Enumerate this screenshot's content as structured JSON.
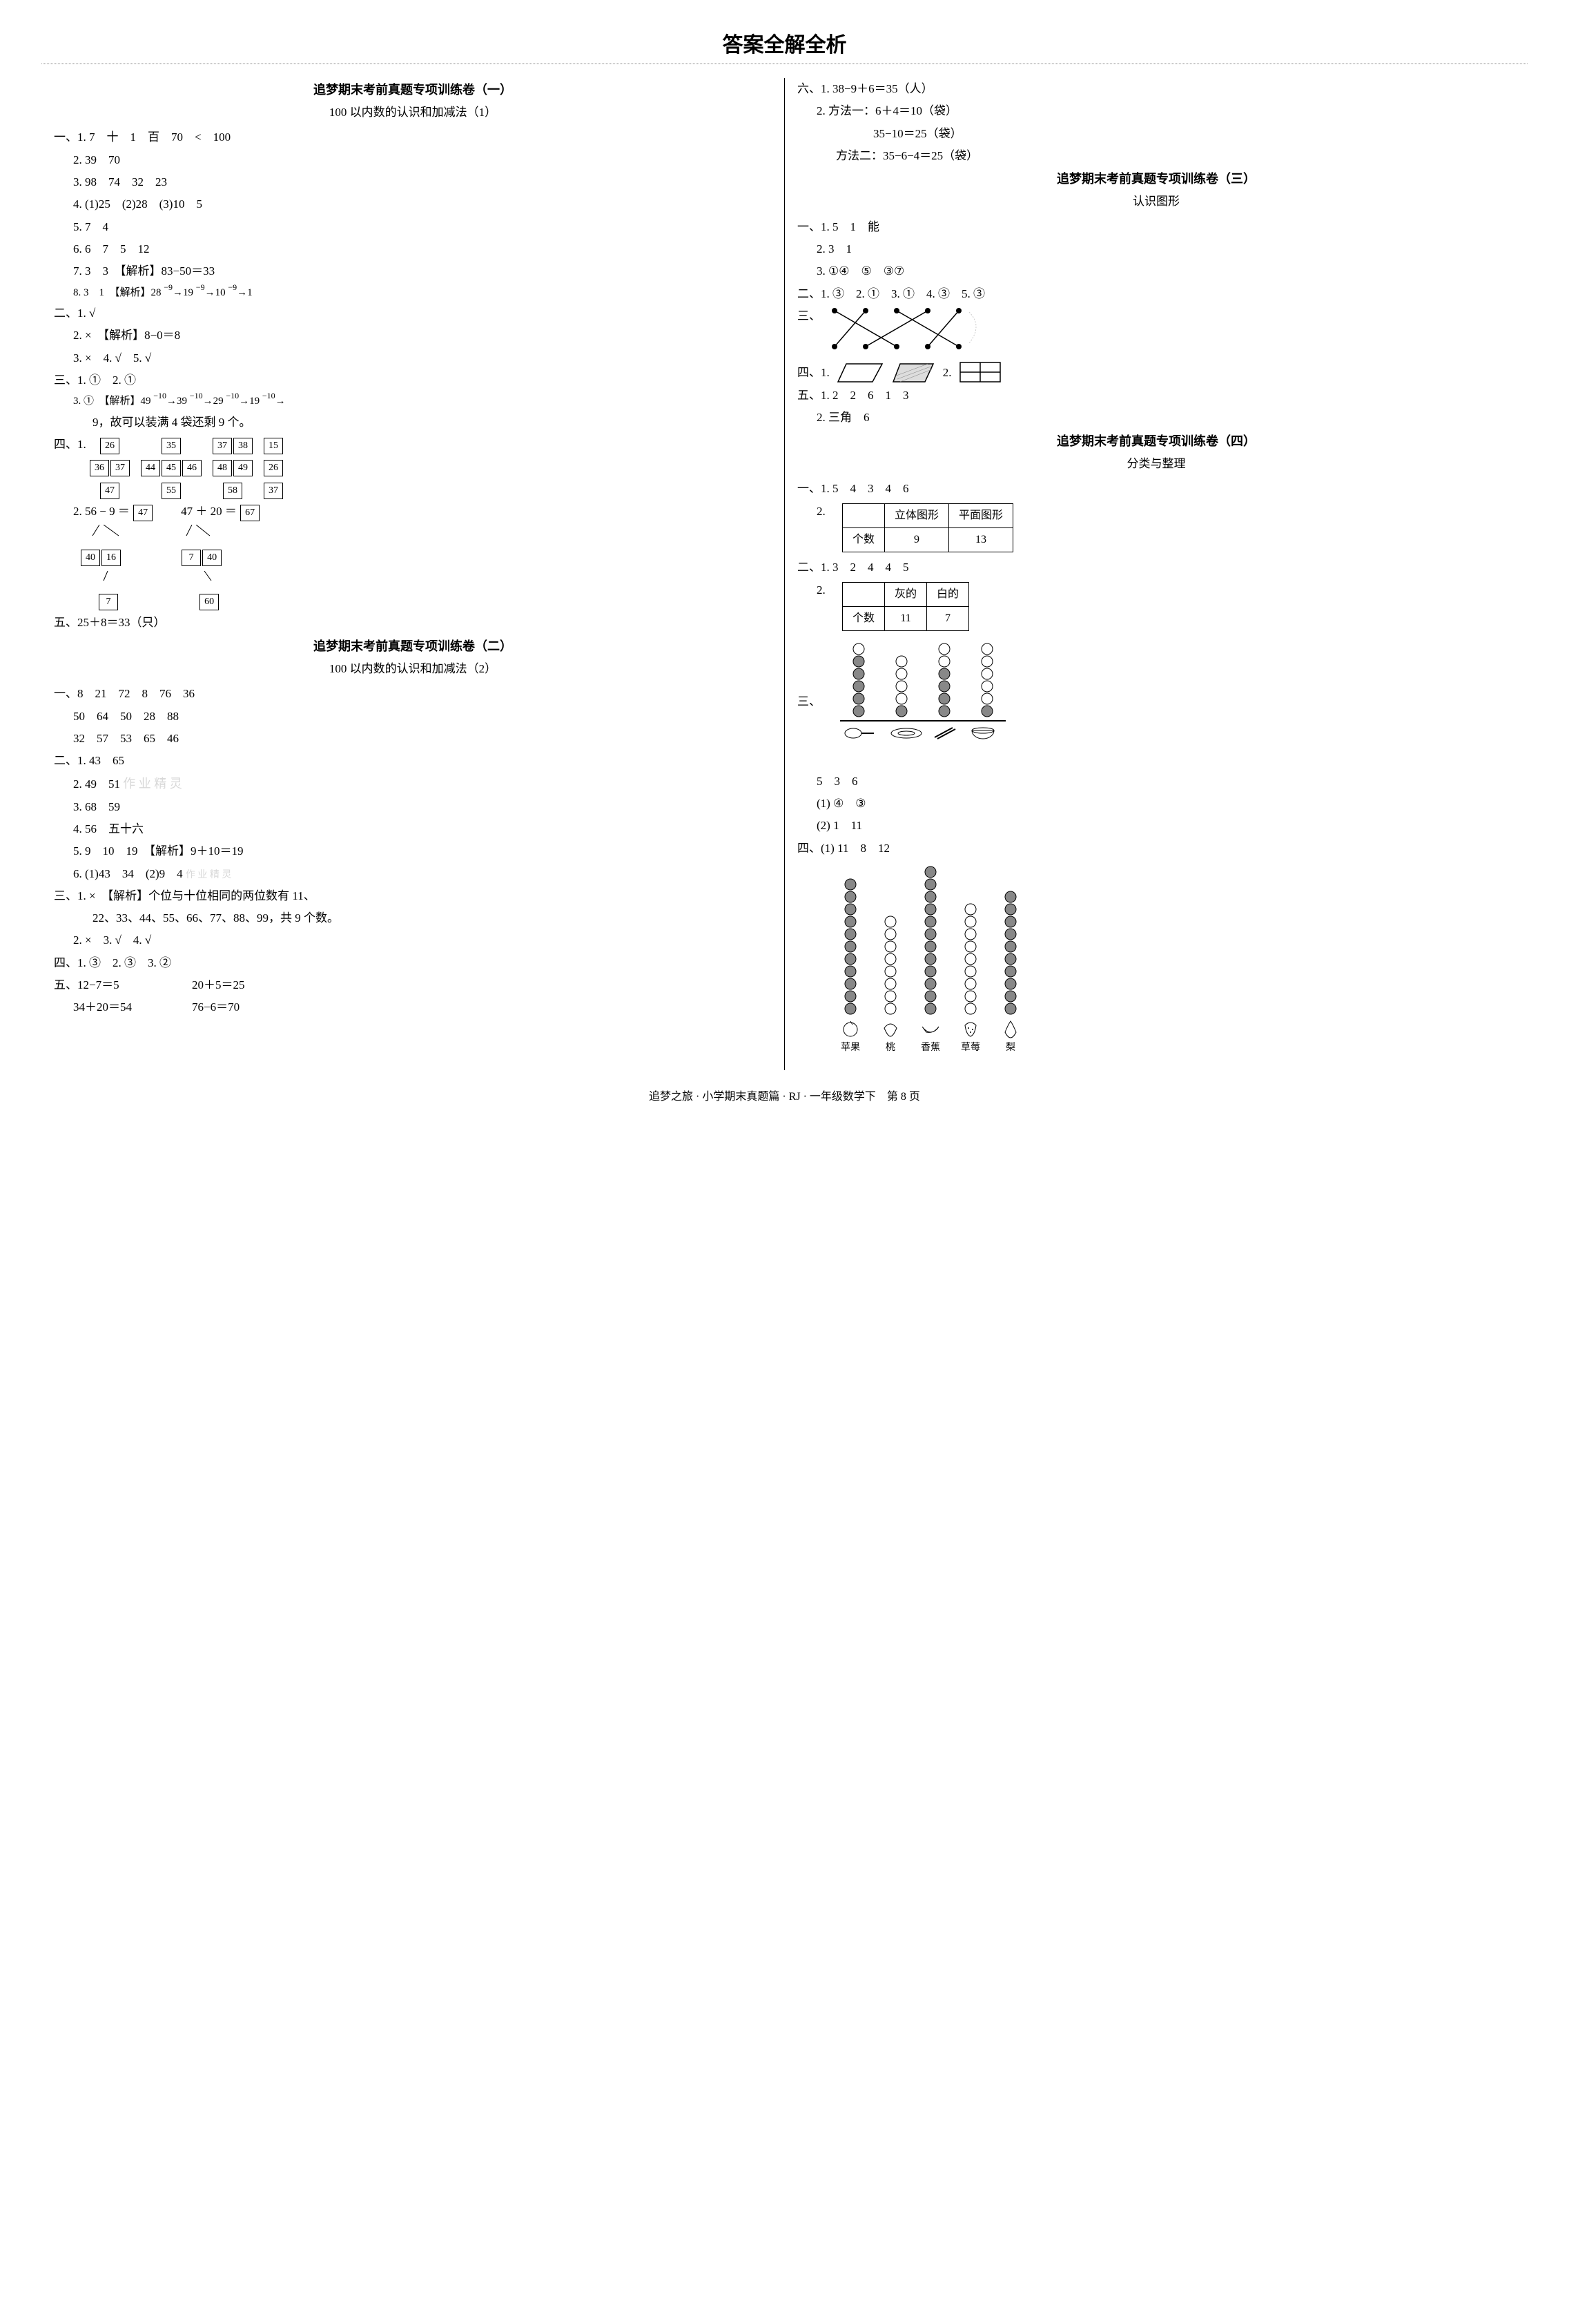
{
  "page_title": "答案全解全析",
  "footer": "追梦之旅 · 小学期末真题篇 · RJ · 一年级数学下　第 8 页",
  "left": {
    "sec1": {
      "title": "追梦期末考前真题专项训练卷（一）",
      "subtitle": "100 以内数的认识和加减法（1）",
      "l1": "一、1. 7　十　1　百　70　<　100",
      "l1_2": "2. 39　70",
      "l1_3": "3. 98　74　32　23",
      "l1_4": "4. (1)25　(2)28　(3)10　5",
      "l1_5": "5. 7　4",
      "l1_6": "6. 6　7　5　12",
      "l1_7": "7. 3　3　【解析】83−50＝33",
      "l1_8_pre": "8. 3　1　【解析】28",
      "l1_8_seq": [
        [
          "−9",
          "19"
        ],
        [
          "−9",
          "10"
        ],
        [
          "−9",
          "1"
        ]
      ],
      "l2": "二、1. √",
      "l2_2": "2. ×　【解析】8−0＝8",
      "l2_3": "3. ×　4. √　5. √",
      "l3": "三、1. ①　2. ①",
      "l3_3_pre": "3. ①　【解析】49",
      "l3_3_seq": [
        [
          "−10",
          "39"
        ],
        [
          "−10",
          "29"
        ],
        [
          "−10",
          "19"
        ],
        [
          "−10",
          ""
        ]
      ],
      "l3_3_tail": "9，故可以装满 4 袋还剩 9 个。",
      "l4_label": "四、1.",
      "l4_groups": [
        [
          [
            "26"
          ],
          [
            "36",
            "37"
          ],
          [
            "47"
          ]
        ],
        [
          [
            "35"
          ],
          [
            "44",
            "45",
            "46"
          ],
          [
            "55"
          ]
        ],
        [
          [
            "37",
            "38"
          ],
          [
            "48",
            "49"
          ],
          [
            "58"
          ]
        ],
        [
          [
            "15"
          ],
          [
            "26"
          ],
          [
            "37"
          ]
        ]
      ],
      "l4_2a_label": "2.",
      "l4_2a_eq": "56 − 9 ＝",
      "l4_2a_result": "47",
      "l4_2a_sub1": [
        "40",
        "16"
      ],
      "l4_2a_sub2": [
        "7"
      ],
      "l4_2b_eq": "47 ＋ 20 ＝",
      "l4_2b_result": "67",
      "l4_2b_sub1": [
        "7",
        "40"
      ],
      "l4_2b_sub2": [
        "60"
      ],
      "l5": "五、25＋8＝33（只）"
    },
    "sec2": {
      "title": "追梦期末考前真题专项训练卷（二）",
      "subtitle": "100 以内数的认识和加减法（2）",
      "l1a": "一、8　21　72　8　76　36",
      "l1b": "50　64　50　28　88",
      "l1c": "32　57　53　65　46",
      "l2_1": "二、1. 43　65",
      "l2_2": "2. 49　51",
      "l2_3": "3. 68　59",
      "l2_4": "4. 56　五十六",
      "l2_5": "5. 9　10　19　【解析】9＋10＝19",
      "l2_6": "6. (1)43　34　(2)9　4",
      "l3_1a": "三、1. ×　【解析】个位与十位相同的两位数有 11、",
      "l3_1b": "22、33、44、55、66、77、88、99，共 9 个数。",
      "l3_2": "2. ×　3. √　4. √",
      "l4": "四、1. ③　2. ③　3. ②",
      "l5a": "五、12−7＝5",
      "l5b": "20＋5＝25",
      "l5c": "34＋20＝54",
      "l5d": "76−6＝70",
      "watermark1": "作 业 精 灵",
      "watermark2": "作 业 精 灵"
    }
  },
  "right": {
    "sec_top": {
      "l6_1": "六、1. 38−9＋6＝35（人）",
      "l6_2a": "2. 方法一：6＋4＝10（袋）",
      "l6_2b": "35−10＝25（袋）",
      "l6_2c": "方法二：35−6−4＝25（袋）"
    },
    "sec3": {
      "title": "追梦期末考前真题专项训练卷（三）",
      "subtitle": "认识图形",
      "l1_1": "一、1. 5　1　能",
      "l1_2": "2. 3　1",
      "l1_3": "3. ①④　⑤　③⑦",
      "l2": "二、1. ③　2. ①　3. ①　4. ③　5. ③",
      "l3_label": "三、",
      "l4_label": "四、1.",
      "l4_2_label": "2.",
      "l5_1": "五、1. 2　2　6　1　3",
      "l5_2": "2. 三角　6"
    },
    "sec4": {
      "title": "追梦期末考前真题专项训练卷（四）",
      "subtitle": "分类与整理",
      "l1_1": "一、1. 5　4　3　4　6",
      "l1_2_label": "2.",
      "table1": {
        "headers": [
          "",
          "立体图形",
          "平面图形"
        ],
        "rows": [
          [
            "个数",
            "9",
            "13"
          ]
        ]
      },
      "l2_1": "二、1. 3　2　4　4　5",
      "l2_2_label": "2.",
      "table2": {
        "headers": [
          "",
          "灰的",
          "白的"
        ],
        "rows": [
          [
            "个数",
            "11",
            "7"
          ]
        ]
      },
      "l3_label": "三、",
      "l3_chart": {
        "columns": 4,
        "values": [
          [
            1,
            5
          ],
          [
            4,
            1
          ],
          [
            2,
            4
          ],
          [
            5,
            1
          ]
        ],
        "max_height": 6,
        "fill_color": "#888888",
        "empty_color": "#ffffff",
        "icons": [
          "spoon",
          "plate",
          "chopsticks",
          "bowl"
        ]
      },
      "l3_answers": "5　3　6",
      "l3_sub1": "(1) ④　③",
      "l3_sub2": "(2) 1　11",
      "l4_label": "四、(1) 11　8　12",
      "l4_chart": {
        "columns": 5,
        "values": [
          11,
          8,
          12,
          9,
          10
        ],
        "max_height": 12,
        "colors": [
          "#888888",
          "#ffffff",
          "#888888",
          "#ffffff",
          "#888888"
        ],
        "labels": [
          "苹果",
          "桃",
          "香蕉",
          "草莓",
          "梨"
        ]
      }
    }
  }
}
